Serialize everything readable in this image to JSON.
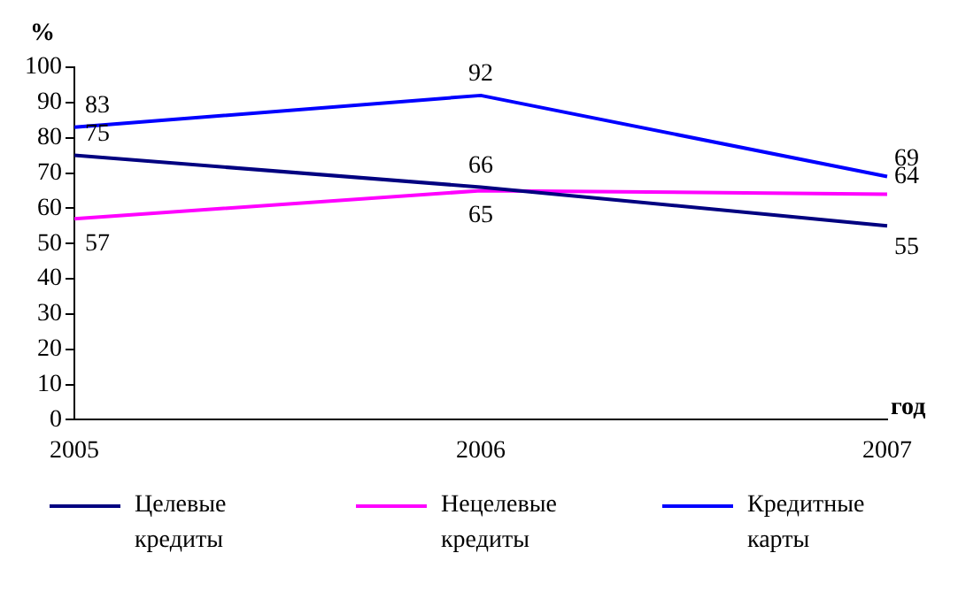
{
  "chart_data": {
    "type": "line",
    "ylabel": "%",
    "xlabel": "год",
    "categories": [
      "2005",
      "2006",
      "2007"
    ],
    "series": [
      {
        "name": "Целевые кредиты",
        "color": "#000080",
        "values": [
          75,
          66,
          55
        ]
      },
      {
        "name": "Нецелевые кредиты",
        "color": "#ff00ff",
        "values": [
          57,
          65,
          64
        ]
      },
      {
        "name": "Кредитные карты",
        "color": "#0000ff",
        "values": [
          83,
          92,
          69
        ]
      }
    ],
    "ylim": [
      0,
      100
    ],
    "yticks": [
      0,
      10,
      20,
      30,
      40,
      50,
      60,
      70,
      80,
      90,
      100
    ],
    "grid": false,
    "legend": "bottom",
    "data_labels": true,
    "marker": "none",
    "line_style": "solid"
  }
}
